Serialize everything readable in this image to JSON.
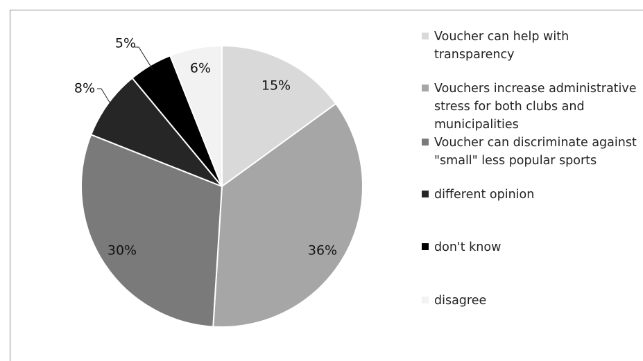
{
  "chart_data": {
    "type": "pie",
    "start_angle_deg": 0,
    "direction": "clockwise",
    "slices": [
      {
        "label": "Voucher can help with transparency",
        "value": 15,
        "value_label": "15%",
        "color": "#d9d9d9"
      },
      {
        "label": "Vouchers increase administrative stress for both clubs and municipalities",
        "value": 36,
        "value_label": "36%",
        "color": "#a6a6a6"
      },
      {
        "label": "Voucher can discriminate against \"small\" less popular sports",
        "value": 30,
        "value_label": "30%",
        "color": "#7a7a7a"
      },
      {
        "label": "different opinion",
        "value": 8,
        "value_label": "8%",
        "color": "#262626"
      },
      {
        "label": "don't know",
        "value": 5,
        "value_label": "5%",
        "color": "#000000"
      },
      {
        "label": "disagree",
        "value": 6,
        "value_label": "6%",
        "color": "#f2f2f2"
      }
    ],
    "legend_position": "right",
    "title": ""
  }
}
